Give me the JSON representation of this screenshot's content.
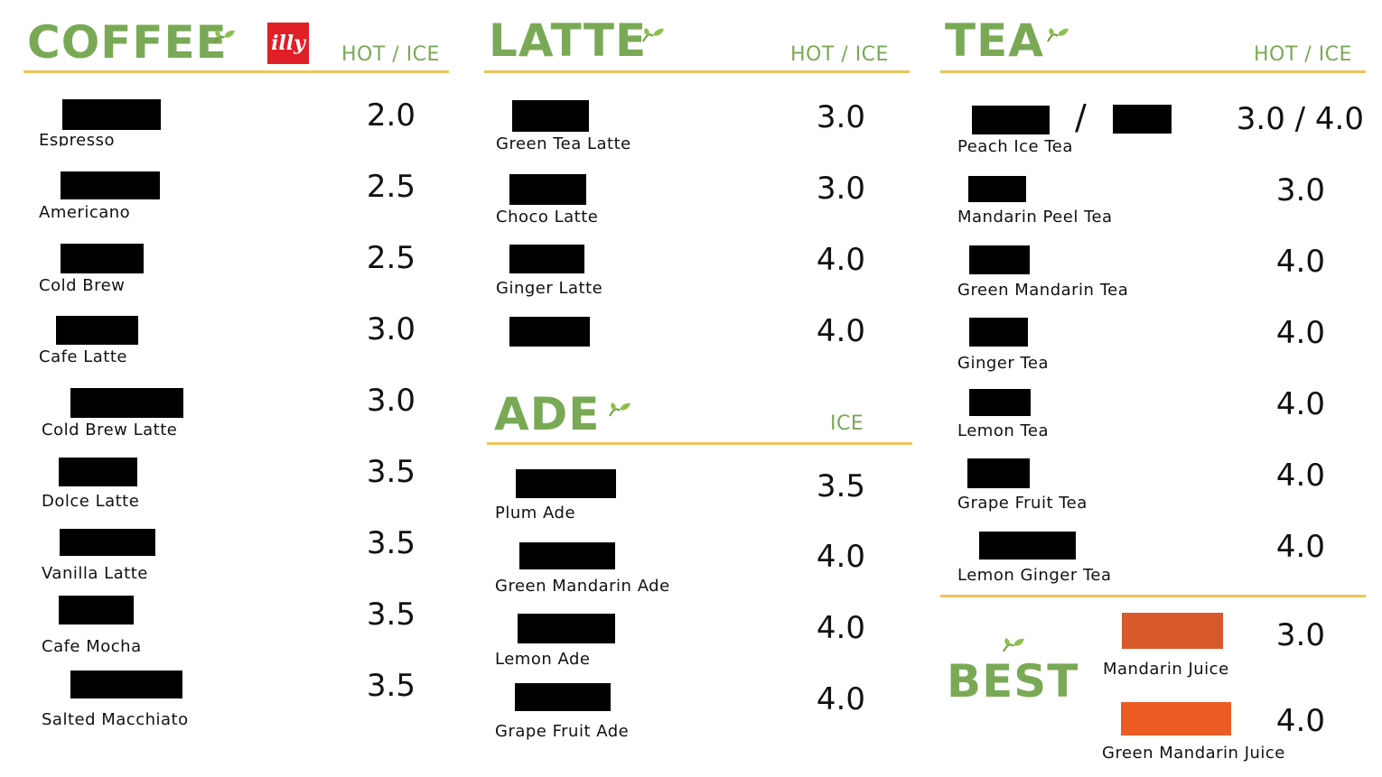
{
  "coffee": {
    "title": "COFFEE",
    "logo": "illy",
    "header": "HOT / ICE",
    "items": [
      {
        "name": "Espresso",
        "price": "2.0"
      },
      {
        "name": "Americano",
        "price": "2.5"
      },
      {
        "name": "Cold Brew",
        "price": "2.5"
      },
      {
        "name": "Cafe Latte",
        "price": "3.0"
      },
      {
        "name": "Cold Brew Latte",
        "price": "3.0"
      },
      {
        "name": "Dolce Latte",
        "price": "3.5"
      },
      {
        "name": "Vanilla Latte",
        "price": "3.5"
      },
      {
        "name": "Cafe Mocha",
        "price": "3.5"
      },
      {
        "name": "Salted Macchiato",
        "price": "3.5"
      }
    ]
  },
  "latte": {
    "title": "LATTE",
    "header": "HOT / ICE",
    "items": [
      {
        "name": "Green Tea Latte",
        "price": "3.0"
      },
      {
        "name": "Choco Latte",
        "price": "3.0"
      },
      {
        "name": "Ginger Latte",
        "price": "4.0"
      },
      {
        "name": "",
        "price": "4.0"
      }
    ]
  },
  "ade": {
    "title": "ADE",
    "header": "ICE",
    "items": [
      {
        "name": "Plum Ade",
        "price": "3.5"
      },
      {
        "name": "Green Mandarin Ade",
        "price": "4.0"
      },
      {
        "name": "Lemon Ade",
        "price": "4.0"
      },
      {
        "name": "Grape Fruit Ade",
        "price": "4.0"
      }
    ]
  },
  "tea": {
    "title": "TEA",
    "header": "HOT / ICE",
    "items": [
      {
        "name": "Peach Ice Tea",
        "price": "3.0 / 4.0",
        "separator": "/"
      },
      {
        "name": "Mandarin Peel Tea",
        "price": "3.0"
      },
      {
        "name": "Green Mandarin Tea",
        "price": "4.0"
      },
      {
        "name": "Ginger Tea",
        "price": "4.0"
      },
      {
        "name": "Lemon Tea",
        "price": "4.0"
      },
      {
        "name": "Grape Fruit Tea",
        "price": "4.0"
      },
      {
        "name": "Lemon Ginger Tea",
        "price": "4.0"
      }
    ]
  },
  "best": {
    "title": "BEST",
    "items": [
      {
        "name": "Mandarin Juice",
        "price": "3.0",
        "color": "#d85a2c"
      },
      {
        "name": "Green Mandarin Juice",
        "price": "4.0",
        "color": "#ea5c24"
      }
    ]
  },
  "colors": {
    "accent_green": "#7aa956",
    "rule_gold": "#efc35b",
    "logo_red": "#e11f26",
    "redaction": "#000000"
  }
}
